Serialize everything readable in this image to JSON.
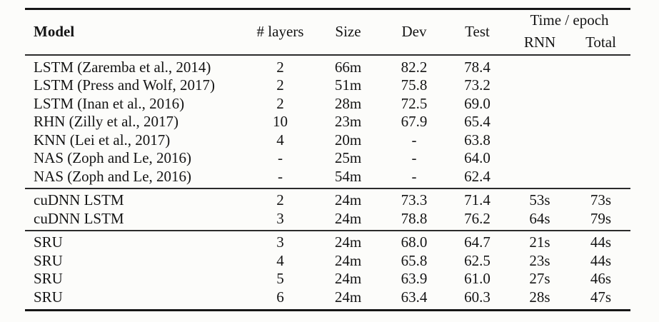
{
  "table": {
    "time_epoch_label": "Time / epoch",
    "columns": [
      {
        "key": "model",
        "label": "Model"
      },
      {
        "key": "layers",
        "label": "# layers"
      },
      {
        "key": "size",
        "label": "Size"
      },
      {
        "key": "dev",
        "label": "Dev"
      },
      {
        "key": "test",
        "label": "Test"
      },
      {
        "key": "rnn",
        "label": "RNN"
      },
      {
        "key": "total",
        "label": "Total"
      }
    ],
    "groups": [
      {
        "rows": [
          {
            "model": "LSTM (Zaremba et al., 2014)",
            "layers": "2",
            "size": "66m",
            "dev": "82.2",
            "test": "78.4",
            "rnn": "",
            "total": ""
          },
          {
            "model": "LSTM (Press and Wolf, 2017)",
            "layers": "2",
            "size": "51m",
            "dev": "75.8",
            "test": "73.2",
            "rnn": "",
            "total": ""
          },
          {
            "model": "LSTM (Inan et al., 2016)",
            "layers": "2",
            "size": "28m",
            "dev": "72.5",
            "test": "69.0",
            "rnn": "",
            "total": ""
          },
          {
            "model": "RHN (Zilly et al., 2017)",
            "layers": "10",
            "size": "23m",
            "dev": "67.9",
            "test": "65.4",
            "rnn": "",
            "total": ""
          },
          {
            "model": "KNN (Lei et al., 2017)",
            "layers": "4",
            "size": "20m",
            "dev": "-",
            "test": "63.8",
            "rnn": "",
            "total": ""
          },
          {
            "model": "NAS (Zoph and Le, 2016)",
            "layers": "-",
            "size": "25m",
            "dev": "-",
            "test": "64.0",
            "rnn": "",
            "total": ""
          },
          {
            "model": "NAS (Zoph and Le, 2016)",
            "layers": "-",
            "size": "54m",
            "dev": "-",
            "test": "62.4",
            "rnn": "",
            "total": ""
          }
        ]
      },
      {
        "rows": [
          {
            "model": "cuDNN LSTM",
            "layers": "2",
            "size": "24m",
            "dev": "73.3",
            "test": "71.4",
            "rnn": "53s",
            "total": "73s"
          },
          {
            "model": "cuDNN LSTM",
            "layers": "3",
            "size": "24m",
            "dev": "78.8",
            "test": "76.2",
            "rnn": "64s",
            "total": "79s"
          }
        ]
      },
      {
        "rows": [
          {
            "model": "SRU",
            "layers": "3",
            "size": "24m",
            "dev": "68.0",
            "test": "64.7",
            "rnn": "21s",
            "total": "44s"
          },
          {
            "model": "SRU",
            "layers": "4",
            "size": "24m",
            "dev": "65.8",
            "test": "62.5",
            "rnn": "23s",
            "total": "44s"
          },
          {
            "model": "SRU",
            "layers": "5",
            "size": "24m",
            "dev": "63.9",
            "test": "61.0",
            "rnn": "27s",
            "total": "46s"
          },
          {
            "model": "SRU",
            "layers": "6",
            "size": "24m",
            "dev": "63.4",
            "test": "60.3",
            "rnn": "28s",
            "total": "47s"
          }
        ]
      }
    ]
  }
}
